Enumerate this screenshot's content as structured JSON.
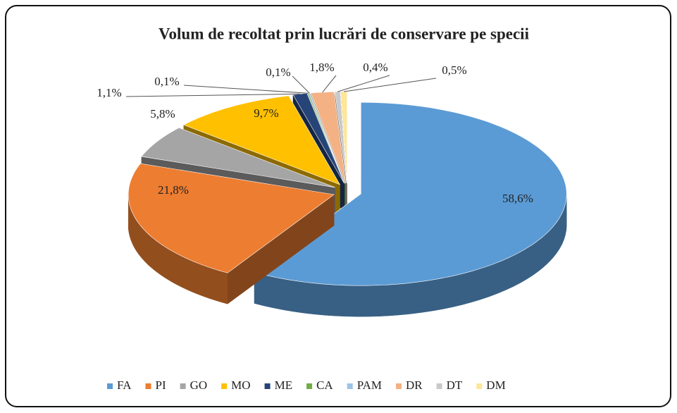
{
  "chart_data": {
    "type": "pie3d",
    "title": "Volum de recoltat prin lucrări de conservare pe specii",
    "categories": [
      "FA",
      "PI",
      "GO",
      "MO",
      "ME",
      "CA",
      "PAM",
      "DR",
      "DT",
      "DM"
    ],
    "values": [
      58.6,
      21.8,
      5.8,
      9.7,
      1.1,
      0.1,
      0.1,
      1.8,
      0.4,
      0.5
    ],
    "value_labels": [
      "58,6%",
      "21,8%",
      "5,8%",
      "9,7%",
      "1,1%",
      "0,1%",
      "0,1%",
      "1,8%",
      "0,4%",
      "0,5%"
    ],
    "colors": [
      "#5b9bd5",
      "#ed7d31",
      "#a5a5a5",
      "#ffc000",
      "#264478",
      "#70ad47",
      "#9dc3e6",
      "#f4b183",
      "#c9c9c9",
      "#ffe699"
    ],
    "legend": "bottom"
  }
}
